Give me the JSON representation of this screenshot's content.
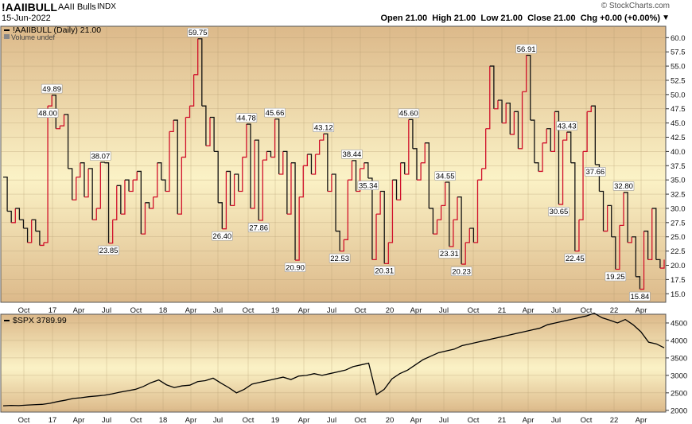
{
  "header": {
    "symbol": "!AAIIBULL",
    "name": "AAII Bulls",
    "exchange": "INDX",
    "date": "15-Jun-2022",
    "ohlc": "Open 21.00  High 21.00  Low 21.00  Close 21.00  Chg +0.00 (+0.00%)",
    "ohlc_arrow": "▼",
    "watermark": "© StockCharts.com"
  },
  "legend": {
    "main": "!AAIIBULL (Daily) 21.00",
    "volume": "Volume undef",
    "spx": "$SPX 3789.99"
  },
  "colors": {
    "up": "#d0102a",
    "down": "#111111",
    "panel_top": "#dcb98a",
    "panel_mid": "#fbf2c6",
    "panel_bottom": "#dcb98a"
  },
  "chart_data": [
    {
      "type": "line",
      "name": "AAII Bulls",
      "x_ticks": [
        "Oct",
        "17",
        "Apr",
        "Jul",
        "Oct",
        "18",
        "Apr",
        "Jul",
        "Oct",
        "19",
        "Apr",
        "Jul",
        "Oct",
        "20",
        "Apr",
        "Jul",
        "Oct",
        "21",
        "Apr",
        "Jul",
        "Oct",
        "22",
        "Apr"
      ],
      "y_ticks": [
        15.0,
        17.5,
        20.0,
        22.5,
        25.0,
        27.5,
        30.0,
        32.5,
        35.0,
        37.5,
        40.0,
        42.5,
        45.0,
        47.5,
        50.0,
        52.5,
        55.0,
        57.5,
        60.0
      ],
      "ylim": [
        13.5,
        62.0
      ],
      "series_color_rule": "red when rising, black when falling",
      "values": [
        35.5,
        29.5,
        27.5,
        30.0,
        28.0,
        26.5,
        24.0,
        28.0,
        26.0,
        23.5,
        24.0,
        48.0,
        49.9,
        44.0,
        44.5,
        46.5,
        37.0,
        31.5,
        35.5,
        38.0,
        32.0,
        37.0,
        28.0,
        30.0,
        38.1,
        38.0,
        23.9,
        28.0,
        34.0,
        29.0,
        35.0,
        33.0,
        35.0,
        36.5,
        25.5,
        31.0,
        30.0,
        32.0,
        38.0,
        35.0,
        33.0,
        43.5,
        45.5,
        29.0,
        39.0,
        46.0,
        48.0,
        53.5,
        59.8,
        48.0,
        41.0,
        46.0,
        40.0,
        31.0,
        26.4,
        36.5,
        30.5,
        36.0,
        33.0,
        39.0,
        44.8,
        30.0,
        42.0,
        27.9,
        38.5,
        40.0,
        39.0,
        45.7,
        36.0,
        40.0,
        29.0,
        38.0,
        20.9,
        32.0,
        37.5,
        39.5,
        36.0,
        39.5,
        42.0,
        43.1,
        33.0,
        36.0,
        26.0,
        22.5,
        24.5,
        35.0,
        38.4,
        33.0,
        37.0,
        38.0,
        35.3,
        21.0,
        29.0,
        33.0,
        20.3,
        24.0,
        35.0,
        31.5,
        38.0,
        36.0,
        45.6,
        40.5,
        35.0,
        38.0,
        41.5,
        30.0,
        25.5,
        28.0,
        30.5,
        34.6,
        23.3,
        28.0,
        32.0,
        20.2,
        24.0,
        26.5,
        24.0,
        35.0,
        37.0,
        44.0,
        55.0,
        47.5,
        49.0,
        45.0,
        48.5,
        43.0,
        47.0,
        40.5,
        50.5,
        56.9,
        45.5,
        38.0,
        36.5,
        41.5,
        44.0,
        40.0,
        47.0,
        30.7,
        42.0,
        43.4,
        38.0,
        22.5,
        28.0,
        40.0,
        47.0,
        48.0,
        37.7,
        33.0,
        26.0,
        30.5,
        25.0,
        19.3,
        27.0,
        32.8,
        24.0,
        25.0,
        18.0,
        15.8,
        26.0,
        21.0,
        30.0,
        21.0,
        19.5,
        21.0
      ],
      "data_labels": [
        {
          "value": 49.89,
          "text": "49.89"
        },
        {
          "value": 38.07,
          "text": "38.07"
        },
        {
          "value": 23.85,
          "text": "23.85"
        },
        {
          "value": 59.75,
          "text": "59.75"
        },
        {
          "value": 26.4,
          "text": "26.40"
        },
        {
          "value": 44.78,
          "text": "44.78"
        },
        {
          "value": 27.86,
          "text": "27.86"
        },
        {
          "value": 45.66,
          "text": "45.66"
        },
        {
          "value": 20.9,
          "text": "20.90"
        },
        {
          "value": 43.12,
          "text": "43.12"
        },
        {
          "value": 22.53,
          "text": "22.53"
        },
        {
          "value": 38.44,
          "text": "38.44"
        },
        {
          "value": 35.34,
          "text": "35.34"
        },
        {
          "value": 20.31,
          "text": "20.31"
        },
        {
          "value": 45.6,
          "text": "45.60"
        },
        {
          "value": 34.55,
          "text": "34.55"
        },
        {
          "value": 23.31,
          "text": "23.31"
        },
        {
          "value": 20.23,
          "text": "20.23"
        },
        {
          "value": 56.91,
          "text": "56.91"
        },
        {
          "value": 30.65,
          "text": "30.65"
        },
        {
          "value": 43.43,
          "text": "43.43"
        },
        {
          "value": 22.45,
          "text": "22.45"
        },
        {
          "value": 48.0,
          "text": "48.00"
        },
        {
          "value": 37.66,
          "text": "37.66"
        },
        {
          "value": 32.8,
          "text": "32.80"
        },
        {
          "value": 19.25,
          "text": "19.25"
        },
        {
          "value": 15.84,
          "text": "15.84"
        }
      ]
    },
    {
      "type": "line",
      "name": "$SPX",
      "x_ticks": [
        "Oct",
        "17",
        "Apr",
        "Jul",
        "Oct",
        "18",
        "Apr",
        "Jul",
        "Oct",
        "19",
        "Apr",
        "Jul",
        "Oct",
        "20",
        "Apr",
        "Jul",
        "Oct",
        "21",
        "Apr",
        "Jul",
        "Oct",
        "22",
        "Apr"
      ],
      "y_ticks": [
        2000,
        2500,
        3000,
        3500,
        4000,
        4500
      ],
      "ylim": [
        1950,
        4750
      ],
      "values": [
        2130,
        2140,
        2135,
        2150,
        2160,
        2170,
        2200,
        2250,
        2290,
        2340,
        2360,
        2390,
        2410,
        2430,
        2470,
        2520,
        2560,
        2600,
        2680,
        2790,
        2870,
        2730,
        2650,
        2700,
        2720,
        2820,
        2850,
        2920,
        2780,
        2650,
        2500,
        2600,
        2750,
        2800,
        2850,
        2900,
        2950,
        2880,
        2980,
        3000,
        3050,
        3000,
        3050,
        3100,
        3150,
        3250,
        3300,
        3350,
        2450,
        2600,
        2900,
        3050,
        3150,
        3300,
        3450,
        3550,
        3650,
        3700,
        3750,
        3850,
        3900,
        3950,
        4000,
        4050,
        4100,
        4150,
        4200,
        4250,
        4300,
        4350,
        4450,
        4500,
        4550,
        4600,
        4650,
        4700,
        4780,
        4650,
        4580,
        4500,
        4600,
        4450,
        4250,
        3950,
        3900,
        3790
      ]
    }
  ]
}
